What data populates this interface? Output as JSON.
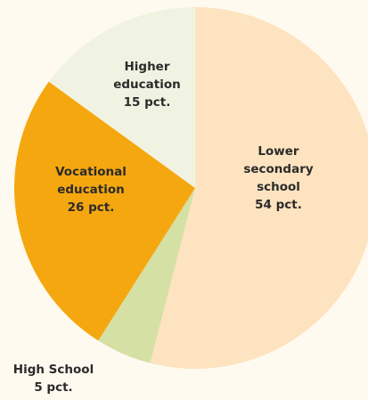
{
  "chart_data": {
    "type": "pie",
    "categories": [
      "Lower secondary school",
      "High School",
      "Vocational education",
      "Higher education"
    ],
    "values": [
      54,
      5,
      26,
      15
    ],
    "value_labels": [
      "54 pct.",
      "5 pct.",
      "26 pct.",
      "15 pct."
    ],
    "colors": [
      "#fde3bf",
      "#d5e0a4",
      "#f5a70f",
      "#f1f3e2"
    ]
  }
}
